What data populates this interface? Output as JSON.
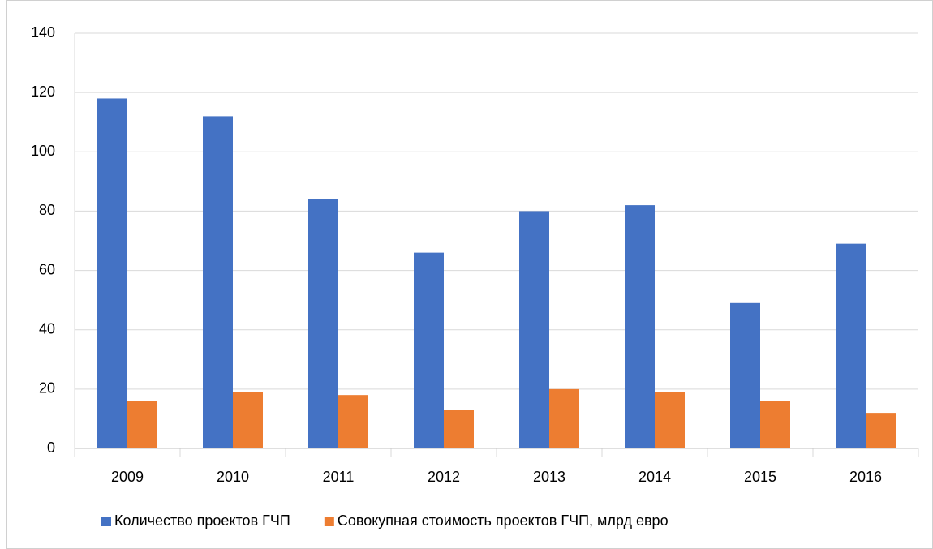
{
  "chart_data": {
    "type": "bar",
    "categories": [
      "2009",
      "2010",
      "2011",
      "2012",
      "2013",
      "2014",
      "2015",
      "2016"
    ],
    "series": [
      {
        "name": "Количество проектов ГЧП",
        "color": "#4472c4",
        "values": [
          118,
          112,
          84,
          66,
          80,
          82,
          49,
          69
        ]
      },
      {
        "name": "Совокупная стоимость проектов ГЧП, млрд евро",
        "color": "#ed7d31",
        "values": [
          16,
          19,
          18,
          13,
          20,
          19,
          16,
          12
        ]
      }
    ],
    "ylim": [
      0,
      140
    ],
    "yticks": [
      0,
      20,
      40,
      60,
      80,
      100,
      120,
      140
    ],
    "grid": true,
    "legend": "bottom"
  }
}
